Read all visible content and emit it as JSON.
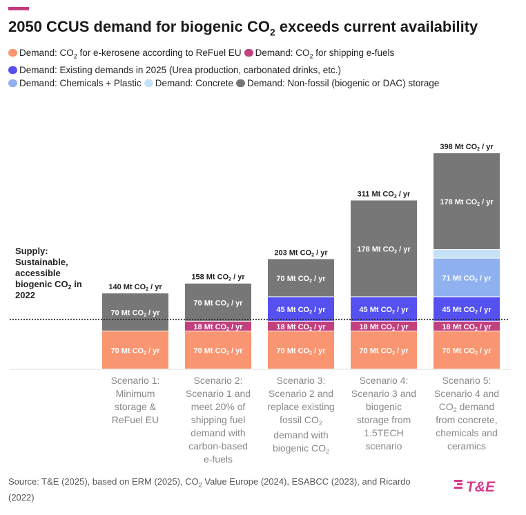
{
  "header": {
    "title_main": "2050 CCUS demand for biogenic CO",
    "title_sub": "2",
    "title_end": " exceeds current availability"
  },
  "colors": {
    "accent": "#c43a80",
    "orange": "#f99671",
    "pink": "#c2407e",
    "blue": "#5551f0",
    "lightblue": "#8fb1f0",
    "paleblue": "#c4e1f6",
    "grey": "#777777"
  },
  "legend": [
    [
      {
        "key": "kerosene",
        "pre": "Demand: CO",
        "sub": "2",
        "post": " for e-kerosene according to ReFuel EU"
      },
      {
        "key": "shipping",
        "pre": "Demand: CO",
        "sub": "2",
        "post": " for shipping e-fuels"
      }
    ],
    [
      {
        "key": "existing",
        "pre": "Demand: Existing demands in 2025 (Urea production, carbonated drinks, etc.)",
        "sub": "",
        "post": ""
      }
    ],
    [
      {
        "key": "chemicals",
        "pre": "Demand: Chemicals + Plastic",
        "sub": "",
        "post": ""
      },
      {
        "key": "concrete",
        "pre": "Demand: Concrete",
        "sub": "",
        "post": ""
      },
      {
        "key": "storage",
        "pre": "Demand: Non-fossil (biogenic or DAC) storage",
        "sub": "",
        "post": ""
      }
    ]
  ],
  "chart_data": {
    "type": "bar",
    "stacked": true,
    "unit": "Mt CO2 / yr",
    "ylim": [
      0,
      398
    ],
    "supply": {
      "value": 92,
      "label_lines": [
        {
          "text": "Supply:",
          "sub": ""
        },
        {
          "text": "Sustainable,",
          "sub": ""
        },
        {
          "text": "accessible",
          "sub": ""
        },
        {
          "text": "biogenic CO",
          "sub": "2",
          "post": " in"
        },
        {
          "text": "2022",
          "sub": ""
        }
      ]
    },
    "categories": [
      [
        {
          "t": "Scenario 1:"
        },
        {
          "t": "Minimum"
        },
        {
          "t": "storage &"
        },
        {
          "t": "ReFuel EU"
        }
      ],
      [
        {
          "t": "Scenario 2:"
        },
        {
          "t": "Scenario 1 and"
        },
        {
          "t": "meet 20% of"
        },
        {
          "t": "shipping fuel"
        },
        {
          "t": "demand with"
        },
        {
          "t": "carbon-based"
        },
        {
          "t": "e-fuels"
        }
      ],
      [
        {
          "t": "Scenario 3:"
        },
        {
          "t": "Scenario 2 and"
        },
        {
          "t": "replace existing"
        },
        {
          "t": "fossil CO",
          "s": "2"
        },
        {
          "t": "demand with"
        },
        {
          "t": "biogenic CO",
          "s": "2"
        }
      ],
      [
        {
          "t": "Scenario 4:"
        },
        {
          "t": "Scenario 3 and"
        },
        {
          "t": "biogenic"
        },
        {
          "t": "storage from"
        },
        {
          "t": "1.5TECH"
        },
        {
          "t": "scenario"
        }
      ],
      [
        {
          "t": "Scenario 5:"
        },
        {
          "t": "Scenario 4 and"
        },
        {
          "t": "CO",
          "s": "2",
          "p": " demand"
        },
        {
          "t": "from concrete,"
        },
        {
          "t": "chemicals and"
        },
        {
          "t": "ceramics"
        }
      ]
    ],
    "totals": [
      140,
      158,
      203,
      311,
      398
    ],
    "series": [
      {
        "key": "kerosene",
        "color": "#f99671",
        "values": [
          70,
          70,
          70,
          70,
          70
        ],
        "labels": [
          "70",
          "70",
          "70",
          "70",
          "70"
        ]
      },
      {
        "key": "shipping",
        "color": "#c2407e",
        "values": [
          0,
          18,
          18,
          18,
          18
        ],
        "labels": [
          "",
          "18",
          "18",
          "18",
          "18"
        ]
      },
      {
        "key": "existing",
        "color": "#5551f0",
        "values": [
          0,
          0,
          45,
          45,
          45
        ],
        "labels": [
          "",
          "",
          "45",
          "45",
          "45"
        ]
      },
      {
        "key": "chemicals",
        "color": "#8fb1f0",
        "values": [
          0,
          0,
          0,
          0,
          71
        ],
        "labels": [
          "",
          "",
          "",
          "",
          "71"
        ]
      },
      {
        "key": "concrete",
        "color": "#c4e1f6",
        "values": [
          0,
          0,
          0,
          0,
          16
        ],
        "labels": [
          "",
          "",
          "",
          "",
          ""
        ]
      },
      {
        "key": "storage",
        "color": "#777777",
        "values": [
          70,
          70,
          70,
          178,
          178
        ],
        "labels": [
          "70",
          "70",
          "70",
          "178",
          "178"
        ]
      }
    ]
  },
  "source": {
    "p1": "Source: T&E (2025), based on ERM (2025), CO",
    "s1": "2",
    "p2": " Value Europe (2024), ESABCC (2023), and Ricardo (2022)"
  },
  "logo": {
    "text": "T&E"
  }
}
